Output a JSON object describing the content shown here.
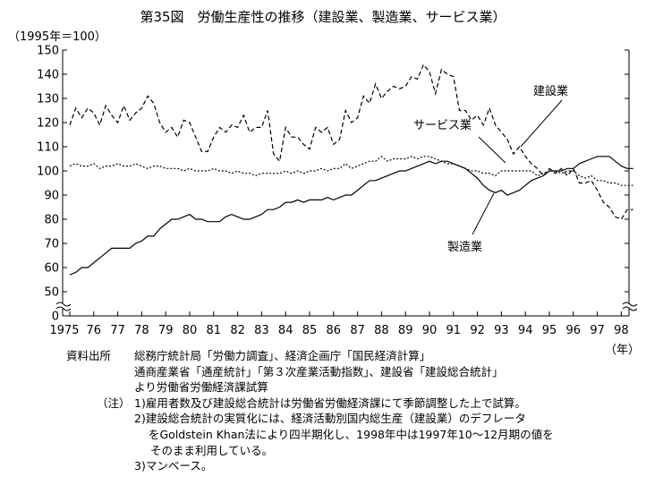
{
  "title": "第35図　労働生産性の推移（建設業、製造業、サービス業）",
  "unit_label": "（1995年＝100）",
  "year_unit": "（年）",
  "chart_data": {
    "type": "line",
    "title": "第35図　労働生産性の推移（建設業、製造業、サービス業）",
    "ylabel": "（1995年＝100）",
    "xlabel": "（年）",
    "ylim": [
      0,
      150
    ],
    "y_axis_break": "0–50",
    "xlim": [
      1975,
      1998.75
    ],
    "x_tick_labels": [
      "1975",
      "76",
      "77",
      "78",
      "79",
      "80",
      "81",
      "82",
      "83",
      "84",
      "85",
      "86",
      "87",
      "88",
      "89",
      "90",
      "91",
      "92",
      "93",
      "94",
      "95",
      "96",
      "97",
      "98"
    ],
    "y_tick_labels": [
      "0",
      "50",
      "60",
      "70",
      "80",
      "90",
      "100",
      "110",
      "120",
      "130",
      "140",
      "150"
    ],
    "y_ticks": [
      0,
      50,
      60,
      70,
      80,
      90,
      100,
      110,
      120,
      130,
      140,
      150
    ],
    "grid": false,
    "series": [
      {
        "name": "建設業",
        "style": "dashed",
        "x": [
          1975.0,
          1975.25,
          1975.5,
          1975.75,
          1976.0,
          1976.25,
          1976.5,
          1976.75,
          1977.0,
          1977.25,
          1977.5,
          1977.75,
          1978.0,
          1978.25,
          1978.5,
          1978.75,
          1979.0,
          1979.25,
          1979.5,
          1979.75,
          1980.0,
          1980.25,
          1980.5,
          1980.75,
          1981.0,
          1981.25,
          1981.5,
          1981.75,
          1982.0,
          1982.25,
          1982.5,
          1982.75,
          1983.0,
          1983.25,
          1983.5,
          1983.75,
          1984.0,
          1984.25,
          1984.5,
          1984.75,
          1985.0,
          1985.25,
          1985.5,
          1985.75,
          1986.0,
          1986.25,
          1986.5,
          1986.75,
          1987.0,
          1987.25,
          1987.5,
          1987.75,
          1988.0,
          1988.25,
          1988.5,
          1988.75,
          1989.0,
          1989.25,
          1989.5,
          1989.75,
          1990.0,
          1990.25,
          1990.5,
          1990.75,
          1991.0,
          1991.25,
          1991.5,
          1991.75,
          1992.0,
          1992.25,
          1992.5,
          1992.75,
          1993.0,
          1993.25,
          1993.5,
          1993.75,
          1994.0,
          1994.25,
          1994.5,
          1994.75,
          1995.0,
          1995.25,
          1995.5,
          1995.75,
          1996.0,
          1996.25,
          1996.5,
          1996.75,
          1997.0,
          1997.25,
          1997.5,
          1997.75,
          1998.0,
          1998.25,
          1998.5
        ],
        "values": [
          119,
          126,
          122,
          126,
          124,
          119,
          127,
          123,
          120,
          127,
          121,
          124,
          126,
          131,
          128,
          120,
          116,
          118,
          114,
          121,
          120,
          114,
          108,
          108,
          114,
          118,
          116,
          119,
          118,
          123,
          116,
          118,
          118,
          125,
          107,
          104,
          118,
          114,
          114,
          111,
          109,
          118,
          116,
          118,
          111,
          113,
          125,
          120,
          122,
          131,
          128,
          136,
          130,
          133,
          135,
          134,
          135,
          139,
          138,
          144,
          141,
          132,
          142,
          140,
          139,
          125,
          125,
          121,
          123,
          119,
          126,
          119,
          116,
          113,
          107,
          110,
          106,
          103,
          101,
          98,
          101,
          99,
          101,
          98,
          101,
          95,
          95,
          96,
          92,
          87,
          85,
          81,
          80,
          84,
          84
        ]
      },
      {
        "name": "サービス業",
        "style": "dotted",
        "x": [
          1975.0,
          1975.25,
          1975.5,
          1975.75,
          1976.0,
          1976.25,
          1976.5,
          1976.75,
          1977.0,
          1977.25,
          1977.5,
          1977.75,
          1978.0,
          1978.25,
          1978.5,
          1978.75,
          1979.0,
          1979.25,
          1979.5,
          1979.75,
          1980.0,
          1980.25,
          1980.5,
          1980.75,
          1981.0,
          1981.25,
          1981.5,
          1981.75,
          1982.0,
          1982.25,
          1982.5,
          1982.75,
          1983.0,
          1983.25,
          1983.5,
          1983.75,
          1984.0,
          1984.25,
          1984.5,
          1984.75,
          1985.0,
          1985.25,
          1985.5,
          1985.75,
          1986.0,
          1986.25,
          1986.5,
          1986.75,
          1987.0,
          1987.25,
          1987.5,
          1987.75,
          1988.0,
          1988.25,
          1988.5,
          1988.75,
          1989.0,
          1989.25,
          1989.5,
          1989.75,
          1990.0,
          1990.25,
          1990.5,
          1990.75,
          1991.0,
          1991.25,
          1991.5,
          1991.75,
          1992.0,
          1992.25,
          1992.5,
          1992.75,
          1993.0,
          1993.25,
          1993.5,
          1993.75,
          1994.0,
          1994.25,
          1994.5,
          1994.75,
          1995.0,
          1995.25,
          1995.5,
          1995.75,
          1996.0,
          1996.25,
          1996.5,
          1996.75,
          1997.0,
          1997.25,
          1997.5,
          1997.75,
          1998.0,
          1998.25,
          1998.5
        ],
        "values": [
          102,
          103,
          102,
          102,
          103,
          101,
          102,
          102,
          103,
          102,
          102,
          103,
          102,
          101,
          102,
          102,
          101,
          101,
          101,
          100,
          101,
          100,
          100,
          100,
          101,
          100,
          100,
          99,
          100,
          99,
          99,
          98,
          99,
          99,
          99,
          99,
          100,
          99,
          100,
          99,
          100,
          100,
          101,
          100,
          101,
          101,
          103,
          101,
          102,
          103,
          104,
          104,
          106,
          104,
          105,
          105,
          105,
          106,
          105,
          106,
          106,
          105,
          104,
          103,
          103,
          102,
          101,
          100,
          100,
          99,
          99,
          98,
          100,
          100,
          100,
          100,
          100,
          100,
          98,
          99,
          100,
          100,
          99,
          100,
          100,
          98,
          97,
          98,
          96,
          96,
          95,
          95,
          94,
          94,
          94
        ]
      },
      {
        "name": "製造業",
        "style": "solid",
        "x": [
          1975.0,
          1975.25,
          1975.5,
          1975.75,
          1976.0,
          1976.25,
          1976.5,
          1976.75,
          1977.0,
          1977.25,
          1977.5,
          1977.75,
          1978.0,
          1978.25,
          1978.5,
          1978.75,
          1979.0,
          1979.25,
          1979.5,
          1979.75,
          1980.0,
          1980.25,
          1980.5,
          1980.75,
          1981.0,
          1981.25,
          1981.5,
          1981.75,
          1982.0,
          1982.25,
          1982.5,
          1982.75,
          1983.0,
          1983.25,
          1983.5,
          1983.75,
          1984.0,
          1984.25,
          1984.5,
          1984.75,
          1985.0,
          1985.25,
          1985.5,
          1985.75,
          1986.0,
          1986.25,
          1986.5,
          1986.75,
          1987.0,
          1987.25,
          1987.5,
          1987.75,
          1988.0,
          1988.25,
          1988.5,
          1988.75,
          1989.0,
          1989.25,
          1989.5,
          1989.75,
          1990.0,
          1990.25,
          1990.5,
          1990.75,
          1991.0,
          1991.25,
          1991.5,
          1991.75,
          1992.0,
          1992.25,
          1992.5,
          1992.75,
          1993.0,
          1993.25,
          1993.5,
          1993.75,
          1994.0,
          1994.25,
          1994.5,
          1994.75,
          1995.0,
          1995.25,
          1995.5,
          1995.75,
          1996.0,
          1996.25,
          1996.5,
          1996.75,
          1997.0,
          1997.25,
          1997.5,
          1997.75,
          1998.0,
          1998.25,
          1998.5
        ],
        "values": [
          57,
          58,
          60,
          60,
          62,
          64,
          66,
          68,
          68,
          68,
          68,
          70,
          71,
          73,
          73,
          76,
          78,
          80,
          80,
          81,
          82,
          80,
          80,
          79,
          79,
          79,
          81,
          82,
          81,
          80,
          80,
          81,
          82,
          84,
          84,
          85,
          87,
          87,
          88,
          87,
          88,
          88,
          88,
          89,
          88,
          89,
          90,
          90,
          92,
          94,
          96,
          96,
          97,
          98,
          99,
          100,
          100,
          101,
          102,
          103,
          104,
          103,
          104,
          104,
          103,
          102,
          101,
          99,
          97,
          94,
          92,
          91,
          92,
          90,
          91,
          92,
          94,
          96,
          97,
          98,
          100,
          100,
          100,
          101,
          101,
          103,
          104,
          105,
          106,
          106,
          106,
          104,
          102,
          101,
          101
        ]
      }
    ],
    "annotations": [
      "建設業",
      "サービス業",
      "製造業"
    ]
  },
  "notes": [
    {
      "key": "資料出所",
      "text": "総務庁統計局「労働力調査」、経済企画庁「国民経済計算」"
    },
    {
      "key": "",
      "text": "通商産業省「通産統計」「第３次産業活動指数」、建設省「建設総合統計」"
    },
    {
      "key": "",
      "text": "より労働省労働経済課試算"
    },
    {
      "key": "（注）",
      "text": "1)雇用者数及び建設総合統計は労働省労働経済課にて季節調整した上で試算。"
    },
    {
      "key": "",
      "text": "2)建設総合統計の実質化には、経済活動別国内総生産（建設業）のデフレータ"
    },
    {
      "key": "",
      "text": "をGoldstein Khan法により四半期化し、1998年中は1997年10～12月期の値を"
    },
    {
      "key": "",
      "text": "そのまま利用している。"
    },
    {
      "key": "",
      "text": "3)マンベース。"
    }
  ]
}
